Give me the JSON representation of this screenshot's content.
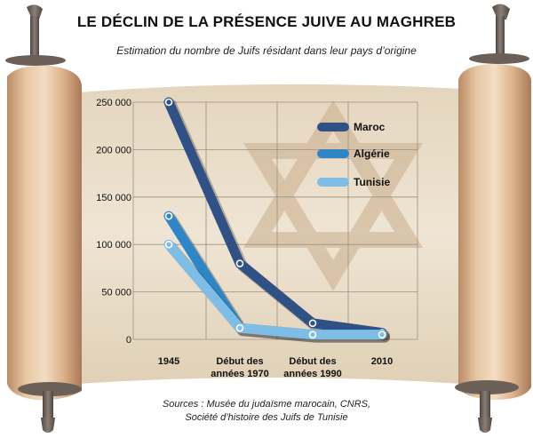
{
  "title": "LE DÉCLIN DE LA PRÉSENCE JUIVE AU MAGHREB",
  "subtitle": "Estimation du nombre de Juifs résidant dans leur pays d’origine",
  "sources": {
    "line1": "Sources : Musée du judaïsme marocain, CNRS,",
    "line2": "Société d’histoire des Juifs de Tunisie"
  },
  "colors": {
    "parchment": "#e8dcc6",
    "scroll_roll": "#d9b48e",
    "rod": "#6b6057",
    "star": "#c9ad8c"
  },
  "chart_data": {
    "type": "line",
    "categories": [
      "1945",
      "Début des années 1970",
      "Début des années 1990",
      "2010"
    ],
    "category_lines": [
      [
        "1945"
      ],
      [
        "Début des",
        "années 1970"
      ],
      [
        "Début des",
        "années 1990"
      ],
      [
        "2010"
      ]
    ],
    "y_ticks": [
      "0",
      "50 000",
      "100 000",
      "150 000",
      "200 000",
      "250 000"
    ],
    "ylim": [
      0,
      250000
    ],
    "grid": true,
    "legend_position": "top-right",
    "series": [
      {
        "name": "Maroc",
        "color": "#2f5185",
        "values": [
          250000,
          80000,
          17000,
          7000
        ]
      },
      {
        "name": "Algérie",
        "color": "#2f86c6",
        "values": [
          130000,
          12000,
          5000,
          5000
        ]
      },
      {
        "name": "Tunisie",
        "color": "#7dbde6",
        "values": [
          100000,
          12000,
          5000,
          5000
        ]
      }
    ]
  }
}
